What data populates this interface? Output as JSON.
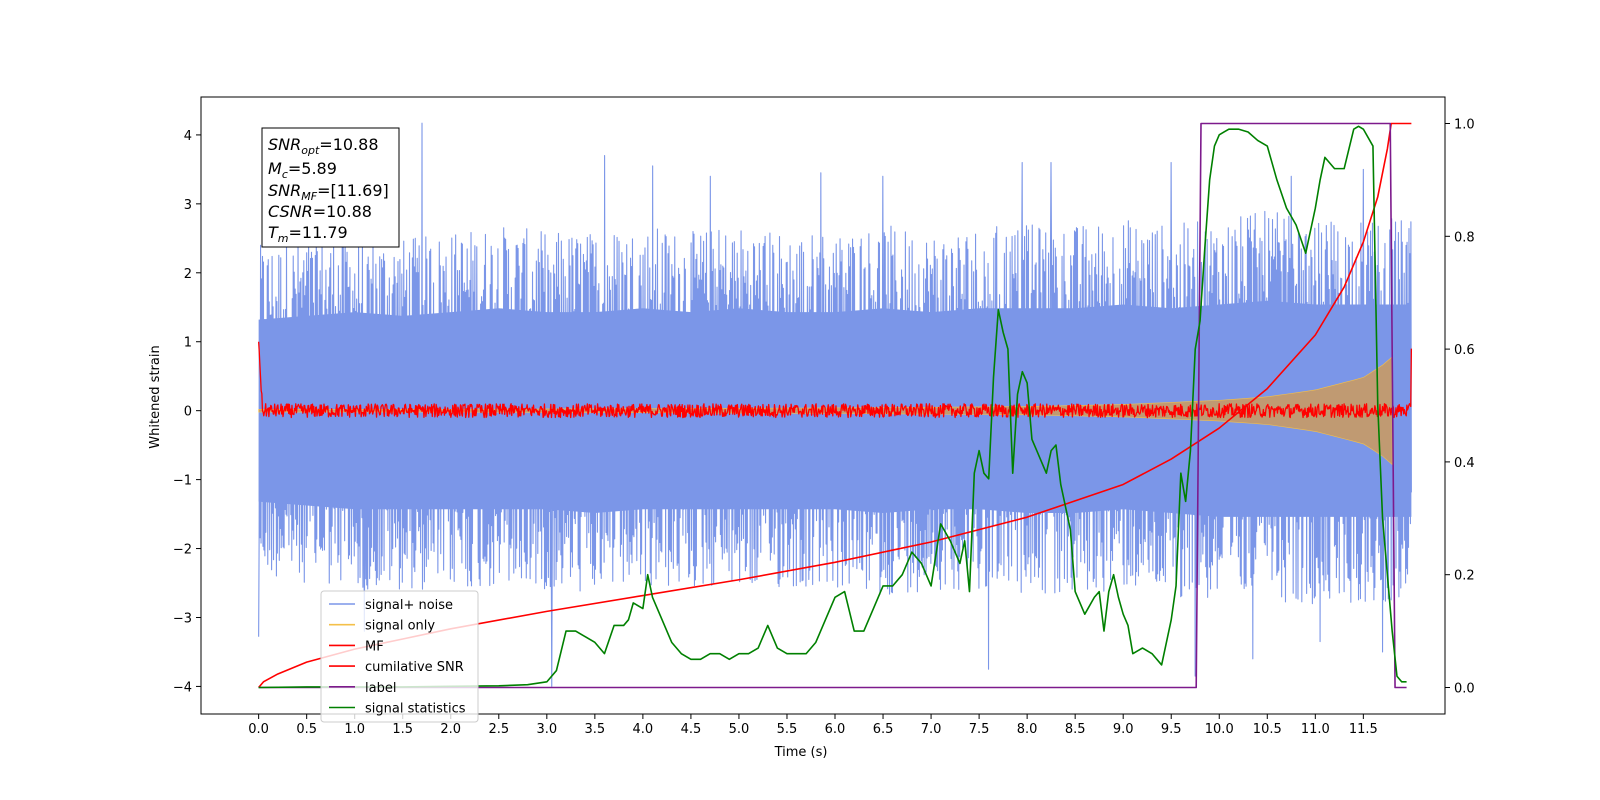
{
  "chart_data": {
    "type": "line",
    "xlabel": "Time (s)",
    "ylabel": "Whitened strain",
    "xlim": [
      -0.6,
      12.35
    ],
    "ylim": [
      -4.4,
      4.55
    ],
    "y2lim": [
      -0.047,
      1.047
    ],
    "x_ticks": [
      "0.0",
      "0.5",
      "1.0",
      "1.5",
      "2.0",
      "2.5",
      "3.0",
      "3.5",
      "4.0",
      "4.5",
      "5.0",
      "5.5",
      "6.0",
      "6.5",
      "7.0",
      "7.5",
      "8.0",
      "8.5",
      "9.0",
      "9.5",
      "10.0",
      "10.5",
      "11.0",
      "11.5"
    ],
    "y_ticks": [
      "4",
      "3",
      "2",
      "1",
      "0",
      "−1",
      "−2",
      "−3",
      "−4"
    ],
    "y2_ticks": [
      "1.0",
      "0.8",
      "0.6",
      "0.4",
      "0.2",
      "0.0"
    ],
    "legend_position": "lower-left",
    "info_box": {
      "snr_opt": {
        "base": "SNR",
        "sub": "opt",
        "value": "=10.88"
      },
      "mc": {
        "base": "M",
        "sub": "c",
        "value": "=5.89"
      },
      "snr_mf": {
        "base": "SNR",
        "sub": "MF",
        "value": "=[11.69]"
      },
      "csnr": {
        "base": "CSNR",
        "sub": "",
        "value": "=10.88"
      },
      "tm": {
        "base": "T",
        "sub": "m",
        "value": "=11.79"
      }
    },
    "series": [
      {
        "name": "signal+ noise",
        "color": "#7b96e8",
        "axis": "left",
        "x_range": [
          0.0,
          12.0
        ],
        "envelope_high": [
          2.4,
          2.5,
          2.6,
          2.5,
          2.6,
          2.7,
          2.6,
          2.6,
          2.7,
          2.6,
          2.7,
          2.6,
          2.6,
          2.7,
          2.6,
          2.7,
          2.7,
          2.7,
          2.8,
          2.7,
          2.8,
          2.9,
          2.8,
          2.8,
          2.8
        ],
        "envelope_low": [
          -2.4,
          -2.5,
          -2.6,
          -2.6,
          -2.6,
          -2.6,
          -2.6,
          -2.7,
          -2.6,
          -2.6,
          -2.6,
          -2.6,
          -2.6,
          -2.7,
          -2.6,
          -2.6,
          -2.7,
          -2.7,
          -2.6,
          -2.7,
          -2.8,
          -2.8,
          -2.8,
          -2.8,
          -2.8
        ],
        "peaks": [
          [
            0.0,
            2.4
          ],
          [
            0.0,
            -3.28
          ],
          [
            1.7,
            4.17
          ],
          [
            1.1,
            -3.2
          ],
          [
            3.05,
            -4.0
          ],
          [
            3.6,
            3.7
          ],
          [
            4.1,
            3.55
          ],
          [
            4.7,
            3.4
          ],
          [
            5.85,
            3.45
          ],
          [
            6.5,
            3.4
          ],
          [
            7.6,
            -3.75
          ],
          [
            7.95,
            3.6
          ],
          [
            8.25,
            3.6
          ],
          [
            9.5,
            3.6
          ],
          [
            9.75,
            -3.85
          ],
          [
            10.35,
            -3.6
          ],
          [
            10.75,
            3.4
          ],
          [
            11.05,
            -3.35
          ],
          [
            11.7,
            -3.5
          ],
          [
            11.5,
            3.5
          ]
        ]
      },
      {
        "name": "signal only",
        "color": "#f4c04a",
        "axis": "left",
        "x_range": [
          0.0,
          12.0
        ],
        "amplitude_x": [
          0.0,
          2.0,
          4.0,
          6.0,
          8.0,
          9.0,
          10.0,
          10.5,
          11.0,
          11.5,
          11.7,
          11.8
        ],
        "amplitude_y": [
          0.02,
          0.02,
          0.03,
          0.04,
          0.06,
          0.09,
          0.15,
          0.2,
          0.3,
          0.48,
          0.66,
          0.78
        ]
      },
      {
        "name": "MF",
        "color": "#ff0000",
        "axis": "left",
        "x_range": [
          0.0,
          12.0
        ],
        "start_value": 1.0,
        "noise_amplitude": 0.1,
        "end_value": 0.9
      },
      {
        "name": "cumilative SNR",
        "color": "#ff0000",
        "axis": "right",
        "x": [
          0.0,
          0.05,
          0.2,
          0.5,
          1.0,
          1.5,
          2.0,
          3.0,
          4.0,
          5.0,
          6.0,
          7.0,
          8.0,
          9.0,
          9.5,
          10.0,
          10.5,
          11.0,
          11.3,
          11.5,
          11.65,
          11.75,
          11.79,
          12.0
        ],
        "y": [
          0.0,
          0.01,
          0.024,
          0.045,
          0.068,
          0.086,
          0.104,
          0.135,
          0.163,
          0.191,
          0.222,
          0.258,
          0.302,
          0.36,
          0.405,
          0.46,
          0.53,
          0.625,
          0.71,
          0.79,
          0.87,
          0.955,
          1.0,
          1.0
        ]
      },
      {
        "name": "label",
        "color": "#7d1a8c",
        "axis": "right",
        "x": [
          0.0,
          9.76,
          9.81,
          11.78,
          11.83,
          11.95
        ],
        "y": [
          0.0,
          0.0,
          1.0,
          1.0,
          0.0,
          0.0
        ]
      },
      {
        "name": "signal statistics",
        "color": "#008000",
        "axis": "right",
        "x": [
          0.0,
          0.5,
          1.0,
          1.5,
          2.0,
          2.5,
          2.8,
          3.0,
          3.1,
          3.2,
          3.3,
          3.4,
          3.5,
          3.6,
          3.7,
          3.8,
          3.85,
          3.9,
          4.0,
          4.05,
          4.1,
          4.2,
          4.3,
          4.4,
          4.5,
          4.6,
          4.7,
          4.8,
          4.9,
          5.0,
          5.1,
          5.2,
          5.3,
          5.4,
          5.5,
          5.6,
          5.7,
          5.8,
          5.9,
          6.0,
          6.1,
          6.2,
          6.3,
          6.4,
          6.5,
          6.6,
          6.7,
          6.8,
          6.9,
          7.0,
          7.1,
          7.2,
          7.3,
          7.35,
          7.4,
          7.45,
          7.5,
          7.55,
          7.6,
          7.65,
          7.7,
          7.75,
          7.8,
          7.85,
          7.9,
          7.95,
          8.0,
          8.05,
          8.1,
          8.15,
          8.2,
          8.25,
          8.3,
          8.35,
          8.4,
          8.45,
          8.5,
          8.6,
          8.7,
          8.75,
          8.8,
          8.85,
          8.9,
          8.95,
          9.0,
          9.05,
          9.1,
          9.2,
          9.3,
          9.4,
          9.5,
          9.55,
          9.6,
          9.65,
          9.7,
          9.75,
          9.8,
          9.85,
          9.9,
          9.95,
          10.0,
          10.05,
          10.1,
          10.2,
          10.3,
          10.4,
          10.5,
          10.6,
          10.7,
          10.8,
          10.9,
          11.0,
          11.05,
          11.1,
          11.2,
          11.3,
          11.4,
          11.45,
          11.5,
          11.6,
          11.65,
          11.7,
          11.75,
          11.8,
          11.85,
          11.9,
          11.95
        ],
        "y": [
          0.0,
          0.001,
          0.001,
          0.001,
          0.002,
          0.003,
          0.005,
          0.01,
          0.03,
          0.1,
          0.1,
          0.09,
          0.08,
          0.06,
          0.11,
          0.11,
          0.12,
          0.15,
          0.14,
          0.2,
          0.16,
          0.12,
          0.08,
          0.06,
          0.05,
          0.05,
          0.06,
          0.06,
          0.05,
          0.06,
          0.06,
          0.07,
          0.11,
          0.07,
          0.06,
          0.06,
          0.06,
          0.08,
          0.12,
          0.16,
          0.17,
          0.1,
          0.1,
          0.14,
          0.18,
          0.18,
          0.2,
          0.24,
          0.22,
          0.18,
          0.29,
          0.26,
          0.22,
          0.26,
          0.17,
          0.38,
          0.42,
          0.38,
          0.37,
          0.55,
          0.67,
          0.63,
          0.6,
          0.38,
          0.52,
          0.56,
          0.54,
          0.44,
          0.42,
          0.4,
          0.38,
          0.42,
          0.43,
          0.36,
          0.32,
          0.28,
          0.17,
          0.13,
          0.16,
          0.17,
          0.1,
          0.17,
          0.2,
          0.16,
          0.13,
          0.11,
          0.06,
          0.07,
          0.06,
          0.04,
          0.12,
          0.18,
          0.38,
          0.33,
          0.42,
          0.6,
          0.65,
          0.78,
          0.9,
          0.96,
          0.98,
          0.985,
          0.99,
          0.99,
          0.985,
          0.97,
          0.96,
          0.9,
          0.85,
          0.82,
          0.77,
          0.85,
          0.9,
          0.94,
          0.92,
          0.92,
          0.99,
          0.995,
          0.99,
          0.96,
          0.5,
          0.3,
          0.2,
          0.1,
          0.02,
          0.01,
          0.01
        ]
      }
    ]
  }
}
